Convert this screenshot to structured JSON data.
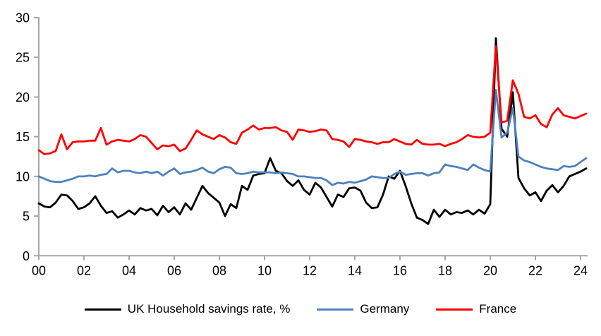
{
  "chart_data": {
    "type": "line",
    "title": "",
    "xlabel": "",
    "ylabel": "",
    "x_start": 2000,
    "x_step": 0.25,
    "ylim": [
      0,
      30
    ],
    "yticks": [
      0,
      5,
      10,
      15,
      20,
      25,
      30
    ],
    "xtick_labels": [
      "00",
      "02",
      "04",
      "06",
      "08",
      "10",
      "12",
      "14",
      "16",
      "18",
      "20",
      "22",
      "24"
    ],
    "xtick_year_step": 2,
    "grid": false,
    "legend_position": "bottom",
    "axis_color": "#A6A6A6",
    "series": [
      {
        "name": "UK Household savings rate, %",
        "color": "#000000",
        "values": [
          6.6,
          6.2,
          6.1,
          6.7,
          7.7,
          7.6,
          6.9,
          5.9,
          6.1,
          6.6,
          7.5,
          6.3,
          5.4,
          5.6,
          4.8,
          5.2,
          5.7,
          5.2,
          6.0,
          5.7,
          5.9,
          5.1,
          6.3,
          5.5,
          6.1,
          5.2,
          6.6,
          5.8,
          7.3,
          8.8,
          7.9,
          7.3,
          6.7,
          5.0,
          6.5,
          6.0,
          8.8,
          8.3,
          10.1,
          10.3,
          10.4,
          12.3,
          10.7,
          10.4,
          9.4,
          8.8,
          9.5,
          8.3,
          7.7,
          9.2,
          8.6,
          7.4,
          6.2,
          7.7,
          7.4,
          8.5,
          8.6,
          8.2,
          6.7,
          6.0,
          6.1,
          7.7,
          10.0,
          9.7,
          10.7,
          8.8,
          6.6,
          4.8,
          4.5,
          4.0,
          5.8,
          4.9,
          5.8,
          5.2,
          5.5,
          5.4,
          5.7,
          5.2,
          5.8,
          5.3,
          6.5,
          27.4,
          16.0,
          15.0,
          20.6,
          9.8,
          8.5,
          7.6,
          8.0,
          6.9,
          8.2,
          8.9,
          8.0,
          8.8,
          10.0,
          10.3,
          10.6,
          11.0
        ]
      },
      {
        "name": "Germany",
        "color": "#4F81BD",
        "values": [
          10.0,
          9.7,
          9.4,
          9.3,
          9.3,
          9.5,
          9.7,
          10.0,
          10.0,
          10.1,
          10.0,
          10.2,
          10.3,
          11.0,
          10.5,
          10.7,
          10.7,
          10.5,
          10.4,
          10.6,
          10.4,
          10.6,
          10.1,
          10.6,
          11.0,
          10.3,
          10.5,
          10.6,
          10.8,
          11.1,
          10.6,
          10.4,
          10.9,
          11.2,
          11.1,
          10.4,
          10.3,
          10.4,
          10.6,
          10.5,
          10.5,
          10.5,
          10.4,
          10.5,
          10.4,
          10.3,
          10.0,
          10.0,
          9.9,
          9.8,
          9.8,
          9.5,
          8.9,
          9.2,
          9.1,
          9.3,
          9.2,
          9.4,
          9.6,
          10.0,
          9.9,
          9.8,
          9.8,
          10.3,
          10.6,
          10.2,
          10.3,
          10.4,
          10.4,
          10.1,
          10.4,
          10.5,
          11.5,
          11.3,
          11.2,
          11.0,
          10.8,
          11.5,
          11.1,
          10.8,
          10.6,
          20.9,
          14.9,
          15.5,
          18.6,
          12.5,
          12.0,
          11.8,
          11.5,
          11.2,
          11.0,
          10.9,
          10.8,
          11.3,
          11.2,
          11.3,
          11.8,
          12.3
        ]
      },
      {
        "name": "France",
        "color": "#FF0000",
        "values": [
          13.3,
          12.8,
          12.9,
          13.2,
          15.3,
          13.4,
          14.3,
          14.4,
          14.4,
          14.5,
          14.5,
          16.1,
          14.0,
          14.4,
          14.6,
          14.5,
          14.4,
          14.7,
          15.2,
          15.0,
          14.2,
          13.4,
          13.9,
          13.8,
          14.0,
          13.2,
          13.5,
          14.6,
          15.8,
          15.3,
          15.0,
          14.7,
          15.2,
          14.9,
          14.3,
          14.1,
          15.5,
          15.9,
          16.4,
          15.9,
          16.1,
          16.1,
          16.2,
          15.8,
          15.6,
          14.6,
          15.9,
          15.8,
          15.6,
          15.7,
          15.9,
          15.8,
          14.7,
          14.6,
          14.4,
          13.7,
          14.7,
          14.6,
          14.4,
          14.3,
          14.1,
          14.3,
          14.3,
          14.7,
          14.4,
          14.1,
          14.0,
          14.6,
          14.1,
          14.0,
          14.0,
          14.1,
          13.8,
          14.1,
          14.3,
          14.7,
          15.2,
          15.0,
          14.9,
          15.0,
          15.5,
          26.4,
          16.8,
          17.0,
          22.1,
          20.4,
          17.5,
          17.3,
          17.7,
          16.6,
          16.2,
          17.8,
          18.6,
          17.7,
          17.5,
          17.3,
          17.6,
          17.9
        ]
      }
    ]
  }
}
